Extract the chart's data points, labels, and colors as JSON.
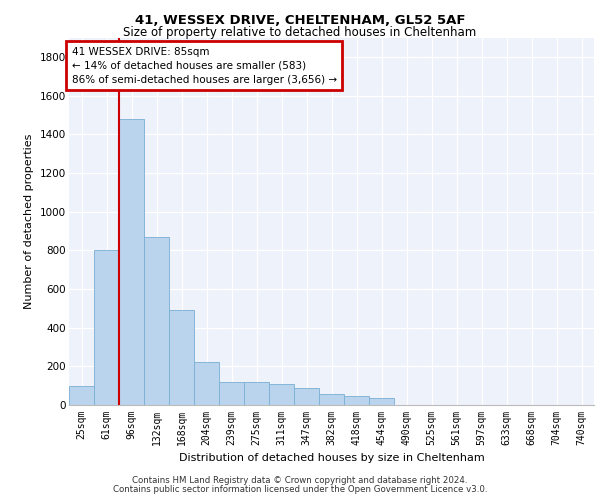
{
  "title1": "41, WESSEX DRIVE, CHELTENHAM, GL52 5AF",
  "title2": "Size of property relative to detached houses in Cheltenham",
  "xlabel": "Distribution of detached houses by size in Cheltenham",
  "ylabel": "Number of detached properties",
  "categories": [
    "25sqm",
    "61sqm",
    "96sqm",
    "132sqm",
    "168sqm",
    "204sqm",
    "239sqm",
    "275sqm",
    "311sqm",
    "347sqm",
    "382sqm",
    "418sqm",
    "454sqm",
    "490sqm",
    "525sqm",
    "561sqm",
    "597sqm",
    "633sqm",
    "668sqm",
    "704sqm",
    "740sqm"
  ],
  "values": [
    100,
    800,
    1480,
    870,
    490,
    220,
    120,
    120,
    110,
    90,
    55,
    45,
    35,
    0,
    0,
    0,
    0,
    0,
    0,
    0,
    0
  ],
  "bar_color": "#bad4ed",
  "bar_edge_color": "#7aaed4",
  "vline_color": "#cc0000",
  "vline_x": 1.5,
  "annotation_text": "41 WESSEX DRIVE: 85sqm\n← 14% of detached houses are smaller (583)\n86% of semi-detached houses are larger (3,656) →",
  "annotation_box_color": "#cc0000",
  "ylim": [
    0,
    1900
  ],
  "yticks": [
    0,
    200,
    400,
    600,
    800,
    1000,
    1200,
    1400,
    1600,
    1800
  ],
  "footer1": "Contains HM Land Registry data © Crown copyright and database right 2024.",
  "footer2": "Contains public sector information licensed under the Open Government Licence v3.0.",
  "bg_color": "#eef2fa"
}
